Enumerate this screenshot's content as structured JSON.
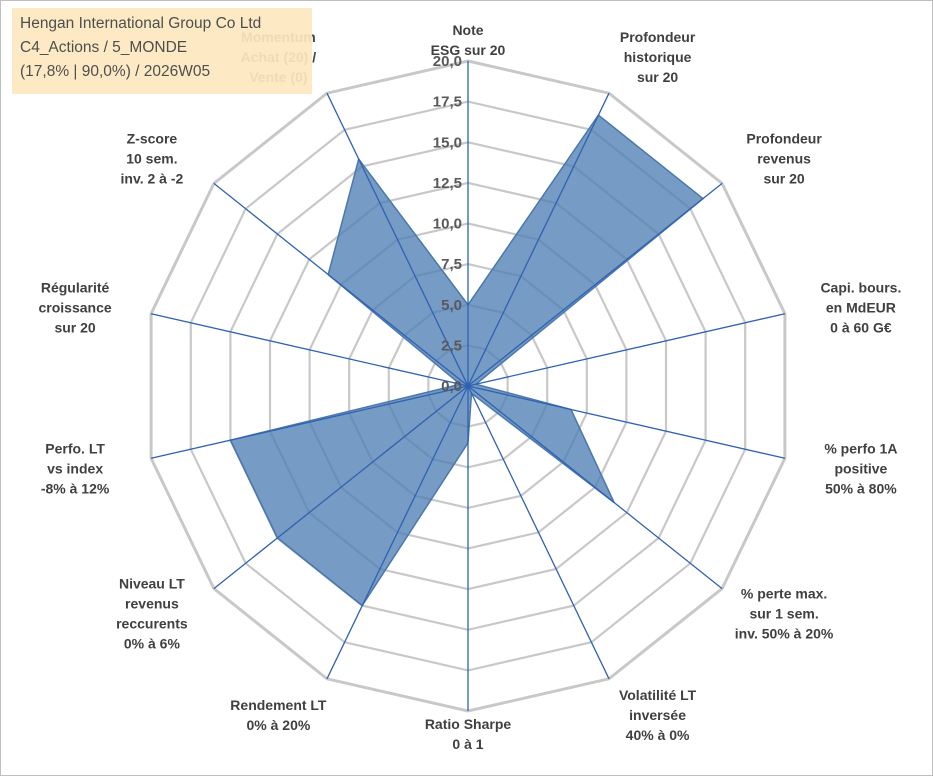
{
  "info": {
    "line1": "Hengan International Group Co Ltd",
    "line2": "C4_Actions / 5_MONDE",
    "line3": "(17,8% | 90,0%) / 2026W05"
  },
  "colors": {
    "fill": "#4f7fb5",
    "stroke": "#4a78ad",
    "ring": "#c8c8c8",
    "spoke": "#2f62b0",
    "text": "#404040"
  },
  "chart_data": {
    "type": "radar",
    "scale": {
      "min": 0,
      "max": 20,
      "step": 2.5
    },
    "tick_labels": [
      "0,0",
      "2,5",
      "5,0",
      "7,5",
      "10,0",
      "12,5",
      "15,0",
      "17,5",
      "20,0"
    ],
    "axes": [
      {
        "label": [
          "Note",
          "ESG sur 20"
        ],
        "value": 5
      },
      {
        "label": [
          "Profondeur",
          "historique",
          "sur 20"
        ],
        "value": 18.5
      },
      {
        "label": [
          "Profondeur",
          "revenus",
          "sur 20"
        ],
        "value": 18.5
      },
      {
        "label": [
          "Capi. bours.",
          "en MdEUR",
          "0 à 60 G€"
        ],
        "value": 0.5
      },
      {
        "label": [
          "% perfo 1A",
          "positive",
          "50% à 80%"
        ],
        "value": 6.5
      },
      {
        "label": [
          "% perte max.",
          "sur 1 sem.",
          "inv. 50% à 20%"
        ],
        "value": 11.5
      },
      {
        "label": [
          "Volatilité LT",
          "inversée",
          "40% à 0%"
        ],
        "value": 0.5
      },
      {
        "label": [
          "Ratio Sharpe",
          "0 à 1"
        ],
        "value": 3.5
      },
      {
        "label": [
          "Rendement LT",
          "0% à 20%"
        ],
        "value": 15
      },
      {
        "label": [
          "Niveau LT",
          "revenus",
          "reccurents",
          "0% à 6%"
        ],
        "value": 15
      },
      {
        "label": [
          "Perfo. LT",
          "vs index",
          "-8% à 12%"
        ],
        "value": 15
      },
      {
        "label": [
          "Régularité",
          "croissance",
          "sur 20"
        ],
        "value": 0.5
      },
      {
        "label": [
          "Z-score",
          "10 sem.",
          "inv. 2 à -2"
        ],
        "value": 11
      },
      {
        "label": [
          "Momentum",
          "Achat (20) /",
          "Vente (0)"
        ],
        "value": 15.5
      }
    ]
  }
}
